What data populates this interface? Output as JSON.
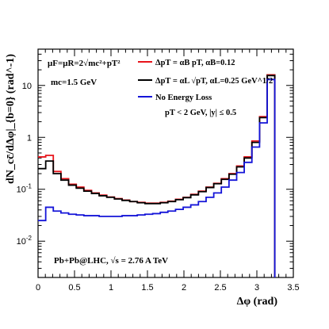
{
  "chart_data": {
    "type": "line",
    "xlabel": "Δφ (rad)",
    "ylabel": "dN_cc̄/dΔφ|_{b=0} (rad^-1)",
    "xlim": [
      0,
      3.5
    ],
    "ylim": [
      0.002,
      50
    ],
    "yscale": "log",
    "grid": false,
    "legend_position": "top-right",
    "x_tick_labels": [
      "0",
      "0.5",
      "1",
      "1.5",
      "2",
      "2.5",
      "3",
      "3.5"
    ],
    "y_tick_labels": [
      {
        "base": "10",
        "exp": "-2",
        "value": 0.01
      },
      {
        "base": "10",
        "exp": "-1",
        "value": 0.1
      },
      {
        "base": "1",
        "exp": "",
        "value": 1
      },
      {
        "base": "10",
        "exp": "",
        "value": 10
      }
    ],
    "bin_edges": [
      0,
      0.105,
      0.209,
      0.314,
      0.419,
      0.524,
      0.628,
      0.733,
      0.838,
      0.942,
      1.047,
      1.152,
      1.257,
      1.361,
      1.466,
      1.571,
      1.676,
      1.78,
      1.885,
      1.99,
      2.094,
      2.199,
      2.304,
      2.409,
      2.513,
      2.618,
      2.723,
      2.827,
      2.932,
      3.037,
      3.142,
      3.246
    ],
    "series": [
      {
        "name": "ΔpT = αB pT, αB=0.12",
        "color": "#e8141b",
        "values": [
          0.42,
          0.45,
          0.22,
          0.16,
          0.125,
          0.11,
          0.095,
          0.085,
          0.077,
          0.071,
          0.066,
          0.062,
          0.058,
          0.056,
          0.054,
          0.054,
          0.056,
          0.059,
          0.064,
          0.07,
          0.08,
          0.092,
          0.11,
          0.13,
          0.16,
          0.2,
          0.28,
          0.42,
          0.85,
          2.5,
          16,
          0
        ]
      },
      {
        "name": "ΔpT = αL √pT, αL=0.25 GeV^1/2",
        "color": "#000000",
        "values": [
          0.25,
          0.35,
          0.2,
          0.15,
          0.12,
          0.105,
          0.092,
          0.083,
          0.075,
          0.07,
          0.065,
          0.061,
          0.058,
          0.055,
          0.053,
          0.053,
          0.055,
          0.058,
          0.063,
          0.069,
          0.078,
          0.09,
          0.108,
          0.128,
          0.155,
          0.195,
          0.27,
          0.4,
          0.8,
          2.4,
          15.5,
          0
        ]
      },
      {
        "name": "No Energy Loss",
        "color": "#1414d8",
        "values": [
          0.025,
          0.045,
          0.038,
          0.035,
          0.033,
          0.032,
          0.031,
          0.031,
          0.03,
          0.03,
          0.03,
          0.031,
          0.031,
          0.032,
          0.033,
          0.034,
          0.036,
          0.038,
          0.041,
          0.045,
          0.05,
          0.058,
          0.07,
          0.085,
          0.11,
          0.15,
          0.21,
          0.33,
          0.65,
          1.9,
          13,
          0
        ]
      }
    ],
    "legend": {
      "red_label": "ΔpT = αB pT, αB=0.12",
      "black_label": "ΔpT = αL √pT, αL=0.25 GeV^1/2",
      "blue_label": "No Energy Loss",
      "cut_label": "pT < 2 GeV, |y| ≤ 0.5"
    },
    "annotations": {
      "scale": "μF=μR=2√mc²+pT²",
      "mass": "mc=1.5 GeV",
      "system": "Pb+Pb@LHC, √s = 2.76 A TeV"
    }
  }
}
